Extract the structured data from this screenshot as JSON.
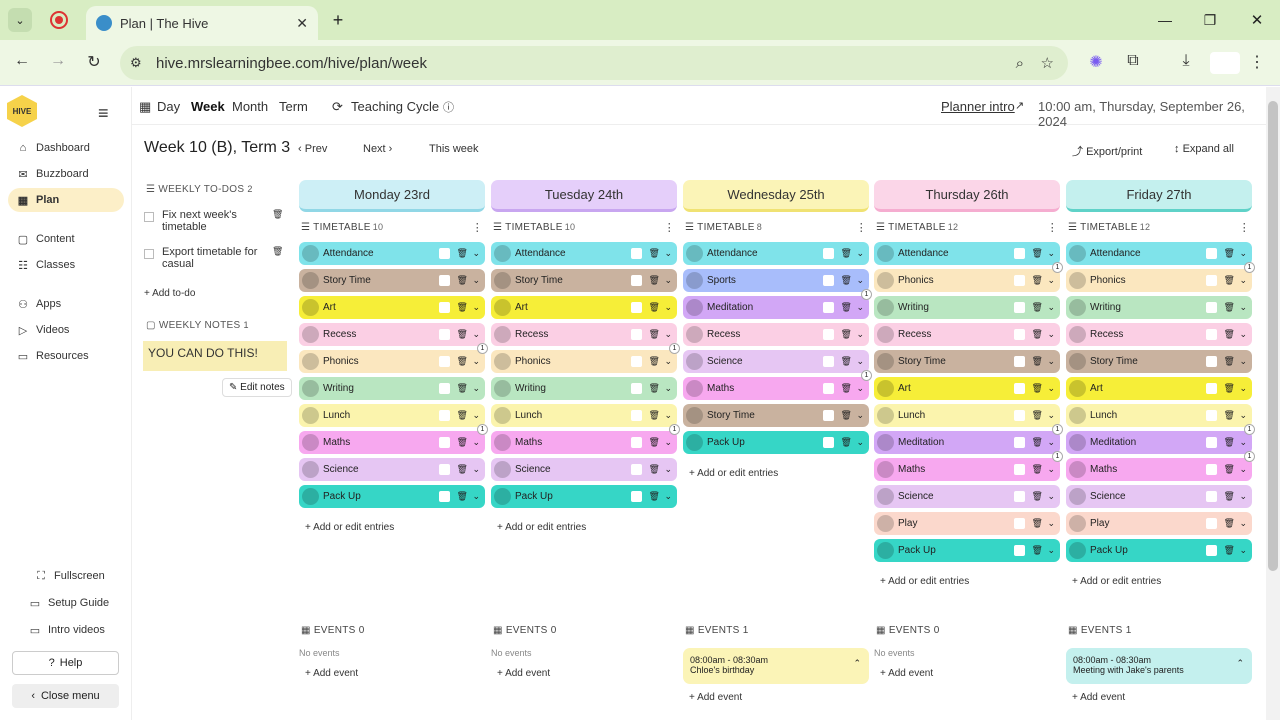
{
  "browser": {
    "tab_title": "Plan | The Hive",
    "url": "hive.mrslearningbee.com/hive/plan/week"
  },
  "sidebar": {
    "logo_text": "HIVE",
    "items": [
      {
        "icon": "dashboard-icon",
        "label": "Dashboard"
      },
      {
        "icon": "buzzboard-icon",
        "label": "Buzzboard"
      },
      {
        "icon": "plan-icon",
        "label": "Plan"
      },
      {
        "icon": "content-icon",
        "label": "Content"
      },
      {
        "icon": "classes-icon",
        "label": "Classes"
      },
      {
        "icon": "apps-icon",
        "label": "Apps"
      },
      {
        "icon": "videos-icon",
        "label": "Videos"
      },
      {
        "icon": "resources-icon",
        "label": "Resources"
      }
    ],
    "fullscreen": "Fullscreen",
    "setup_guide": "Setup Guide",
    "intro_videos": "Intro videos",
    "help": "Help",
    "close_menu": "Close menu"
  },
  "header": {
    "views": [
      "Day",
      "Week",
      "Month",
      "Term"
    ],
    "teaching_cycle": "Teaching Cycle",
    "planner_intro": "Planner intro",
    "datetime": "10:00 am, Thursday, September 26, 2024"
  },
  "week": {
    "title": "Week 10 (B), Term 3",
    "prev": "Prev",
    "next": "Next",
    "this_week": "This week",
    "export": "Export/print",
    "expand": "Expand all"
  },
  "todos": {
    "heading": "WEEKLY TO-DOS",
    "count": "2",
    "items": [
      "Fix next week's timetable",
      "Export timetable for casual"
    ],
    "add": "+ Add to-do"
  },
  "notes": {
    "heading": "WEEKLY NOTES",
    "count": "1",
    "text": "YOU CAN DO THIS!",
    "edit": "Edit notes"
  },
  "colors": {
    "Attendance": "#7fe3ea",
    "Story Time": "#c9b29f",
    "Art": "#f6ee38",
    "Recess": "#fbcfe4",
    "Phonics": "#fbe7bf",
    "Writing": "#b9e6c1",
    "Lunch": "#fbf4ad",
    "Maths": "#f7a8ef",
    "Science": "#e6c6f3",
    "Pack Up": "#36d6c6",
    "Sports": "#a8bdfb",
    "Meditation": "#d2a7f6",
    "Play": "#fbd8cc"
  },
  "days": [
    {
      "name": "Monday 23rd",
      "color": "#cdeff6",
      "border": "#91d7e6",
      "timetable_label": "TIMETABLE",
      "count": "10",
      "entries": [
        "Attendance",
        "Story Time",
        "Art",
        "Recess",
        "Phonics",
        "Writing",
        "Lunch",
        "Maths",
        "Science",
        "Pack Up"
      ],
      "badges": {
        "Phonics": "1",
        "Maths": "1"
      },
      "add_entries": "+ Add or edit entries",
      "events_label": "EVENTS",
      "events_count": "0",
      "no_events": "No events",
      "add_event": "+ Add event"
    },
    {
      "name": "Tuesday 24th",
      "color": "#e5cffa",
      "border": "#c8a6f0",
      "timetable_label": "TIMETABLE",
      "count": "10",
      "entries": [
        "Attendance",
        "Story Time",
        "Art",
        "Recess",
        "Phonics",
        "Writing",
        "Lunch",
        "Maths",
        "Science",
        "Pack Up"
      ],
      "badges": {
        "Phonics": "1",
        "Maths": "1"
      },
      "add_entries": "+ Add or edit entries",
      "events_label": "EVENTS",
      "events_count": "0",
      "no_events": "No events",
      "add_event": "+ Add event"
    },
    {
      "name": "Wednesday 25th",
      "color": "#fbf4b7",
      "border": "#f0e273",
      "timetable_label": "TIMETABLE",
      "count": "8",
      "entries": [
        "Attendance",
        "Sports",
        "Meditation",
        "Recess",
        "Science",
        "Maths",
        "Story Time",
        "Pack Up"
      ],
      "badges": {
        "Meditation": "1",
        "Maths": "1"
      },
      "add_entries": "+ Add or edit entries",
      "events_label": "EVENTS",
      "events_count": "1",
      "event": {
        "time": "08:00am - 08:30am",
        "title": "Chloe's birthday",
        "color": "#fbf4b7"
      },
      "add_event": "+ Add event"
    },
    {
      "name": "Thursday 26th",
      "color": "#fbd6e8",
      "border": "#f5add0",
      "timetable_label": "TIMETABLE",
      "count": "12",
      "entries": [
        "Attendance",
        "Phonics",
        "Writing",
        "Recess",
        "Story Time",
        "Art",
        "Lunch",
        "Meditation",
        "Maths",
        "Science",
        "Play",
        "Pack Up"
      ],
      "badges": {
        "Phonics": "1",
        "Meditation": "1",
        "Maths": "1"
      },
      "add_entries": "+ Add or edit entries",
      "events_label": "EVENTS",
      "events_count": "0",
      "no_events": "No events",
      "add_event": "+ Add event"
    },
    {
      "name": "Friday 27th",
      "color": "#c4f0ee",
      "border": "#5fd2c8",
      "timetable_label": "TIMETABLE",
      "count": "12",
      "entries": [
        "Attendance",
        "Phonics",
        "Writing",
        "Recess",
        "Story Time",
        "Art",
        "Lunch",
        "Meditation",
        "Maths",
        "Science",
        "Play",
        "Pack Up"
      ],
      "badges": {
        "Phonics": "1",
        "Meditation": "1",
        "Maths": "1"
      },
      "add_entries": "+ Add or edit entries",
      "events_label": "EVENTS",
      "events_count": "1",
      "event": {
        "time": "08:00am - 08:30am",
        "title": "Meeting with Jake's parents",
        "color": "#c4f0ee"
      },
      "add_event": "+ Add event"
    }
  ]
}
